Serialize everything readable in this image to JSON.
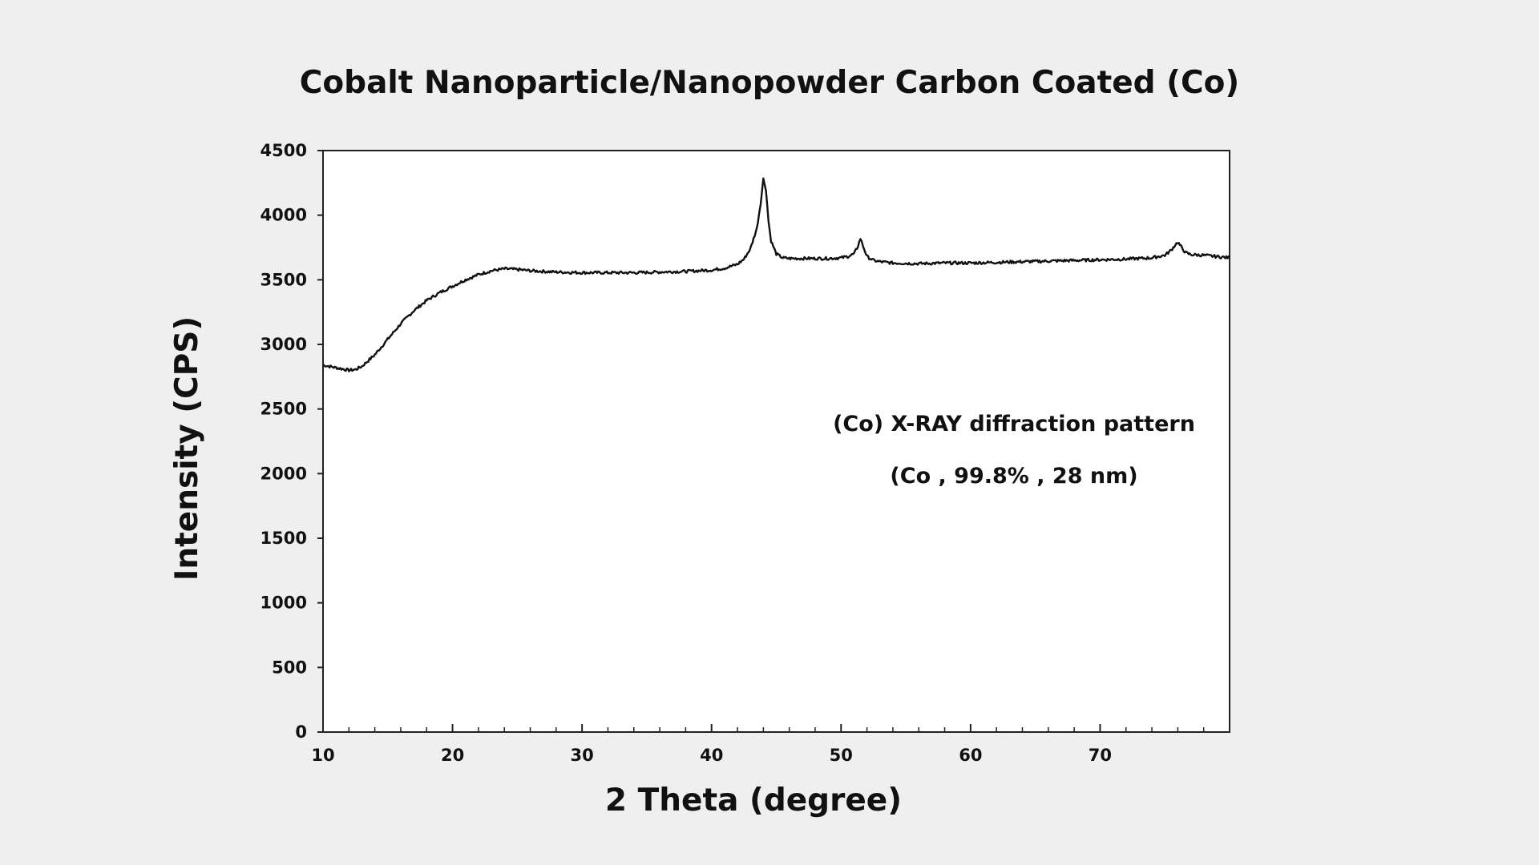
{
  "chart_data": {
    "type": "line",
    "title": "Cobalt Nanoparticle/Nanopowder Carbon Coated (Co)",
    "xlabel": "2 Theta (degree)",
    "ylabel": "Intensity (CPS)",
    "xlim": [
      10,
      80
    ],
    "ylim": [
      0,
      4500
    ],
    "x_ticks": [
      10,
      20,
      30,
      40,
      50,
      60,
      70
    ],
    "x_minor_ticks": [
      12,
      14,
      16,
      18,
      22,
      24,
      26,
      28,
      32,
      34,
      36,
      38,
      42,
      44,
      46,
      48,
      52,
      54,
      56,
      58,
      62,
      64,
      66,
      68,
      72,
      74,
      76,
      78
    ],
    "y_ticks": [
      0,
      500,
      1000,
      1500,
      2000,
      2500,
      3000,
      3500,
      4000,
      4500
    ],
    "grid": false,
    "legend": "none",
    "line_color": "#111111",
    "annotations": [
      "(Co) X-RAY diffraction pattern",
      "(Co , 99.8% , 28 nm)"
    ],
    "series": [
      {
        "x": [
          10,
          11,
          12,
          12.5,
          13,
          14,
          15,
          16,
          17,
          18,
          19,
          20,
          21,
          22,
          23,
          24,
          25,
          26,
          28,
          30,
          32,
          34,
          36,
          38,
          40,
          41,
          42,
          42.5,
          43,
          43.5,
          43.8,
          44.0,
          44.2,
          44.4,
          44.6,
          45,
          45.5,
          46,
          47,
          48,
          49,
          50,
          50.5,
          51,
          51.3,
          51.5,
          51.7,
          52,
          52.5,
          53,
          54,
          56,
          58,
          60,
          62,
          64,
          66,
          68,
          70,
          72,
          74,
          75,
          75.5,
          75.8,
          76,
          76.3,
          76.6,
          77,
          78,
          79,
          80
        ],
        "y": [
          2840,
          2820,
          2800,
          2805,
          2830,
          2920,
          3040,
          3160,
          3260,
          3340,
          3400,
          3450,
          3500,
          3540,
          3570,
          3585,
          3580,
          3570,
          3560,
          3555,
          3555,
          3555,
          3560,
          3565,
          3575,
          3590,
          3620,
          3660,
          3740,
          3900,
          4100,
          4280,
          4200,
          3950,
          3800,
          3700,
          3670,
          3665,
          3665,
          3665,
          3665,
          3670,
          3680,
          3700,
          3760,
          3820,
          3760,
          3680,
          3650,
          3640,
          3630,
          3625,
          3630,
          3630,
          3635,
          3640,
          3645,
          3650,
          3655,
          3660,
          3670,
          3690,
          3730,
          3770,
          3790,
          3750,
          3710,
          3695,
          3690,
          3680,
          3670
        ]
      }
    ]
  }
}
